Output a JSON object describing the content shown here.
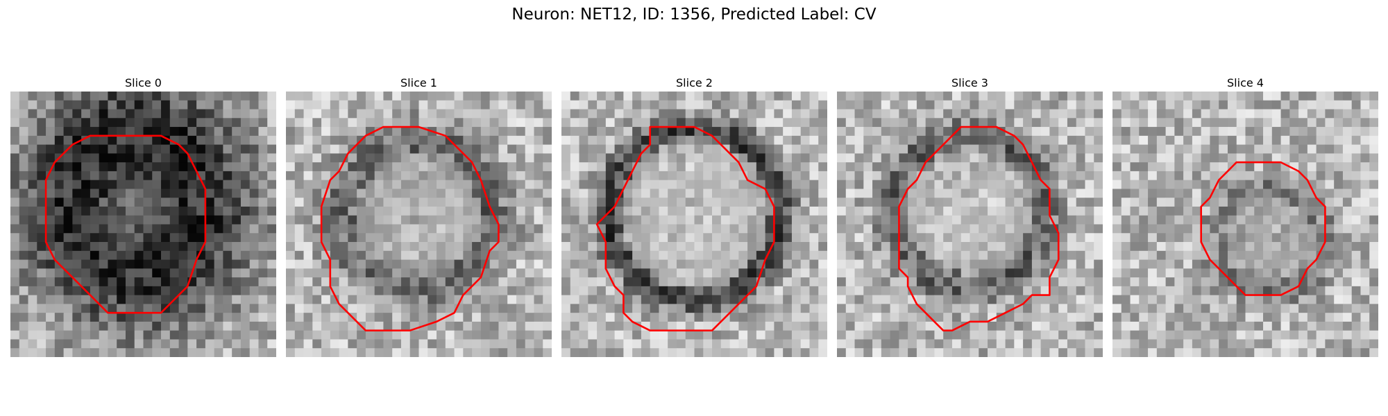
{
  "figure": {
    "title": "Neuron: NET12, ID: 1356, Predicted Label: CV"
  },
  "panels": [
    {
      "title": "Slice 0"
    },
    {
      "title": "Slice 1"
    },
    {
      "title": "Slice 2"
    },
    {
      "title": "Slice 3"
    },
    {
      "title": "Slice 4"
    }
  ],
  "colors": {
    "contour": "#ff0000",
    "background": "#ffffff"
  }
}
